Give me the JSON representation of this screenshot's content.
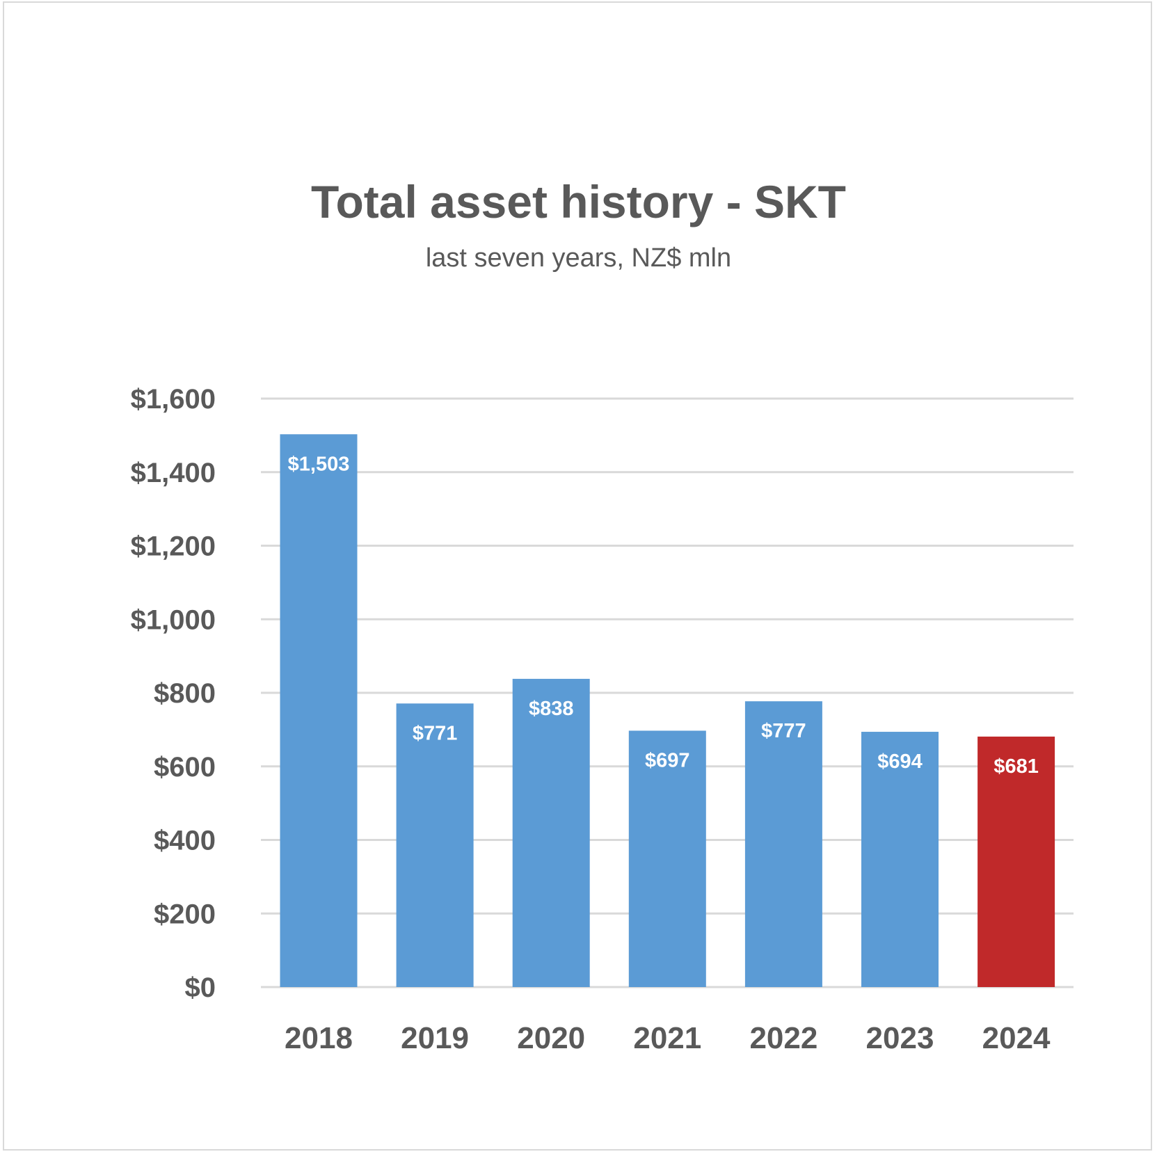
{
  "chart_data": {
    "type": "bar",
    "title": "Total asset history - SKT",
    "subtitle": "last seven years, NZ$ mln",
    "categories": [
      "2018",
      "2019",
      "2020",
      "2021",
      "2022",
      "2023",
      "2024"
    ],
    "values": [
      1503,
      771,
      838,
      697,
      777,
      694,
      681
    ],
    "data_labels": [
      "$1,503",
      "$771",
      "$838",
      "$697",
      "$777",
      "$694",
      "$681"
    ],
    "y_ticks": [
      0,
      200,
      400,
      600,
      800,
      1000,
      1200,
      1400,
      1600
    ],
    "y_tick_labels": [
      "$0",
      "$200",
      "$400",
      "$600",
      "$800",
      "$1,000",
      "$1,200",
      "$1,400",
      "$1,600"
    ],
    "ylim": [
      0,
      1600
    ],
    "xlabel": "",
    "ylabel": "",
    "grid": true,
    "legend": "none",
    "colors": {
      "default": "#5B9BD5",
      "highlight": "#C0292A",
      "highlight_category": "2024",
      "grid": "#d9d9d9",
      "text": "#595959"
    }
  }
}
